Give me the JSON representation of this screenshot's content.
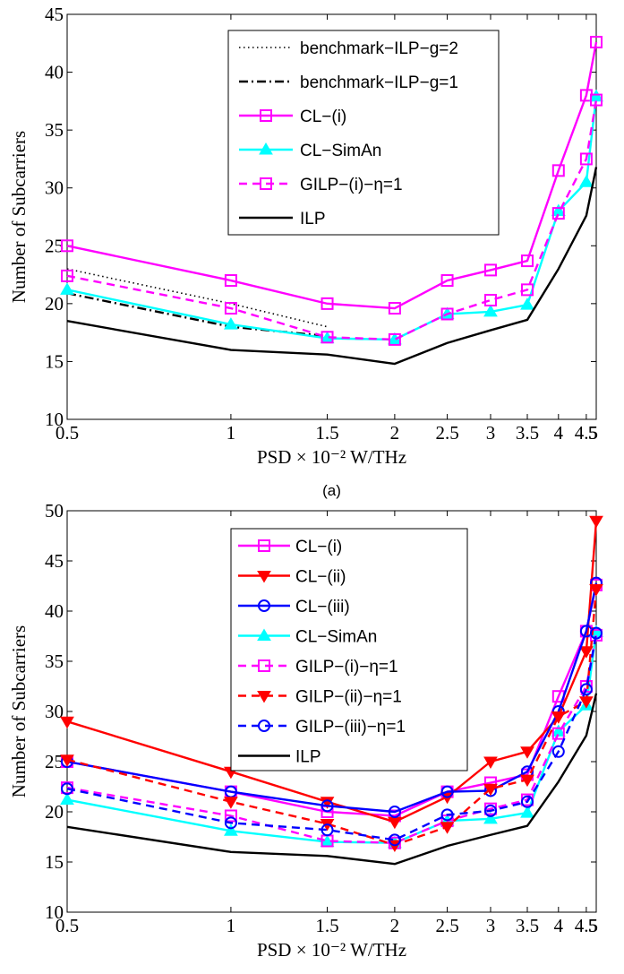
{
  "chart_data": [
    {
      "type": "line",
      "panel_label": "(a)",
      "xlabel": "PSD × 10⁻² W/THz",
      "ylabel": "Number of Subcarriers",
      "ylim": [
        10,
        45
      ],
      "yticks": [
        10,
        15,
        20,
        25,
        30,
        35,
        40,
        45
      ],
      "xticks": [
        0.5,
        1,
        1.5,
        2,
        2.5,
        3,
        3.5,
        4,
        4.5,
        5
      ],
      "xtick_labels": [
        "0.5",
        "1",
        "1.5",
        "2",
        "2.5",
        "3",
        "3.5",
        "4",
        "4.5",
        "5"
      ],
      "grid": false,
      "legend_position": "top-right",
      "series": [
        {
          "name": "benchmark−ILP−g=2",
          "color": "#000000",
          "dash": "dot",
          "marker": "none",
          "x": [
            0.5,
            1,
            1.5
          ],
          "values": [
            23,
            20,
            18
          ]
        },
        {
          "name": "benchmark−ILP−g=1",
          "color": "#000000",
          "dash": "dashdot",
          "marker": "none",
          "x": [
            0.5,
            1,
            1.5
          ],
          "values": [
            20.9,
            18,
            17.2
          ]
        },
        {
          "name": "CL−(i)",
          "color": "#ff00ff",
          "dash": "solid",
          "marker": "square",
          "x": [
            0.5,
            1,
            1.5,
            2,
            2.5,
            3,
            3.5,
            4,
            4.5,
            5
          ],
          "values": [
            25,
            22,
            20,
            19.6,
            22,
            22.9,
            23.7,
            31.5,
            38,
            42.6
          ]
        },
        {
          "name": "CL−SimAn",
          "color": "#00ffff",
          "dash": "solid",
          "marker": "triangle",
          "x": [
            0.5,
            1,
            1.5,
            2,
            2.5,
            3,
            3.5,
            4,
            4.5,
            5
          ],
          "values": [
            21.2,
            18.2,
            17,
            16.9,
            19.1,
            19.3,
            19.9,
            28,
            30.5,
            37.9
          ]
        },
        {
          "name": "GILP−(i)−η=1",
          "color": "#ff00ff",
          "dash": "dash",
          "marker": "square",
          "x": [
            0.5,
            1,
            1.5,
            2,
            2.5,
            3,
            3.5,
            4,
            4.5,
            5
          ],
          "values": [
            22.4,
            19.6,
            17.1,
            16.9,
            19.1,
            20.3,
            21.2,
            27.8,
            32.5,
            37.6
          ]
        },
        {
          "name": "ILP",
          "color": "#000000",
          "dash": "solid",
          "marker": "none",
          "x": [
            0.5,
            1,
            1.5,
            2,
            2.5,
            3,
            3.5,
            4,
            4.5,
            5
          ],
          "values": [
            18.5,
            16,
            15.6,
            14.8,
            16.6,
            17.7,
            18.6,
            23,
            27.6,
            31.8
          ]
        }
      ]
    },
    {
      "type": "line",
      "panel_label": "",
      "xlabel": "PSD × 10⁻² W/THz",
      "ylabel": "Number of Subcarriers",
      "ylim": [
        10,
        50
      ],
      "yticks": [
        10,
        15,
        20,
        25,
        30,
        35,
        40,
        45,
        50
      ],
      "xticks": [
        0.5,
        1,
        1.5,
        2,
        2.5,
        3,
        3.5,
        4,
        4.5,
        5
      ],
      "xtick_labels": [
        "0.5",
        "1",
        "1.5",
        "2",
        "2.5",
        "3",
        "3.5",
        "4",
        "4.5",
        "5"
      ],
      "grid": false,
      "legend_position": "top-center",
      "series": [
        {
          "name": "CL−(i)",
          "color": "#ff00ff",
          "dash": "solid",
          "marker": "square",
          "x": [
            0.5,
            1,
            1.5,
            2,
            2.5,
            3,
            3.5,
            4,
            4.5,
            5
          ],
          "values": [
            25,
            22,
            20,
            19.6,
            22,
            22.9,
            23.7,
            31.5,
            38,
            42.6
          ]
        },
        {
          "name": "CL−(ii)",
          "color": "#ff0000",
          "dash": "solid",
          "marker": "triangle-down",
          "x": [
            0.5,
            1,
            1.5,
            2,
            2.5,
            3,
            3.5,
            4,
            4.5,
            5
          ],
          "values": [
            29,
            24,
            21,
            19,
            21.5,
            25,
            26,
            29.5,
            36,
            49
          ]
        },
        {
          "name": "CL−(iii)",
          "color": "#0000ff",
          "dash": "solid",
          "marker": "circle",
          "x": [
            0.5,
            1,
            1.5,
            2,
            2.5,
            3,
            3.5,
            4,
            4.5,
            5
          ],
          "values": [
            25,
            22,
            20.6,
            20,
            22,
            22.1,
            24,
            30,
            38,
            42.8
          ]
        },
        {
          "name": "CL−SimAn",
          "color": "#00ffff",
          "dash": "solid",
          "marker": "triangle",
          "x": [
            0.5,
            1,
            1.5,
            2,
            2.5,
            3,
            3.5,
            4,
            4.5,
            5
          ],
          "values": [
            21.2,
            18.1,
            17,
            16.9,
            19.1,
            19.3,
            19.9,
            28,
            30.6,
            37.9
          ]
        },
        {
          "name": "GILP−(i)−η=1",
          "color": "#ff00ff",
          "dash": "dash",
          "marker": "square",
          "x": [
            0.5,
            1,
            1.5,
            2,
            2.5,
            3,
            3.5,
            4,
            4.5,
            5
          ],
          "values": [
            22.4,
            19.6,
            17.1,
            16.9,
            19.1,
            20.3,
            21.2,
            27.8,
            32.5,
            37.6
          ]
        },
        {
          "name": "GILP−(ii)−η=1",
          "color": "#ff0000",
          "dash": "dash",
          "marker": "triangle-down",
          "x": [
            0.5,
            1,
            1.5,
            2,
            2.5,
            3,
            3.5,
            4,
            4.5,
            5
          ],
          "values": [
            25.2,
            21,
            18.8,
            16.7,
            18.5,
            22.3,
            23.2,
            29.5,
            31,
            42.2
          ]
        },
        {
          "name": "GILP−(iii)−η=1",
          "color": "#0000ff",
          "dash": "dash",
          "marker": "circle",
          "x": [
            0.5,
            1,
            1.5,
            2,
            2.5,
            3,
            3.5,
            4,
            4.5,
            5
          ],
          "values": [
            22.3,
            18.9,
            18.2,
            17.2,
            19.7,
            20.1,
            21,
            26,
            32.2,
            37.8
          ]
        },
        {
          "name": "ILP",
          "color": "#000000",
          "dash": "solid",
          "marker": "none",
          "x": [
            0.5,
            1,
            1.5,
            2,
            2.5,
            3,
            3.5,
            4,
            4.5,
            5
          ],
          "values": [
            18.5,
            16,
            15.6,
            14.8,
            16.6,
            17.7,
            18.6,
            23,
            27.6,
            31.8
          ]
        }
      ]
    }
  ]
}
